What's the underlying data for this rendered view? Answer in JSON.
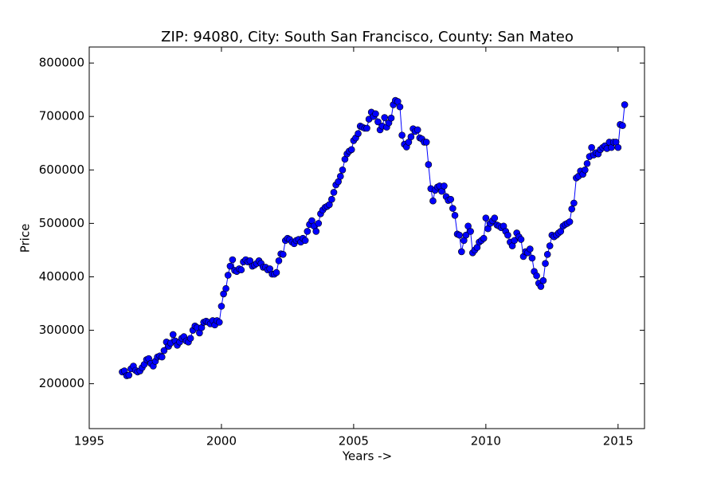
{
  "chart_data": {
    "type": "line",
    "title": "ZIP: 94080, City: South San Francisco, County: San Mateo",
    "x_label": "Years ->",
    "y_label": "Price",
    "color": "#0000ff",
    "marker": "circle",
    "xlim": [
      1995,
      2016
    ],
    "ylim": [
      116000,
      830000
    ],
    "xticks": [
      1995,
      2000,
      2005,
      2010,
      2015
    ],
    "yticks": [
      200000,
      300000,
      400000,
      500000,
      600000,
      700000,
      800000
    ],
    "x": [
      1996.25,
      1996.33,
      1996.42,
      1996.5,
      1996.58,
      1996.67,
      1996.75,
      1996.83,
      1996.92,
      1997.0,
      1997.08,
      1997.17,
      1997.25,
      1997.33,
      1997.42,
      1997.5,
      1997.58,
      1997.67,
      1997.75,
      1997.83,
      1997.92,
      1998.0,
      1998.08,
      1998.17,
      1998.25,
      1998.33,
      1998.42,
      1998.5,
      1998.58,
      1998.67,
      1998.75,
      1998.83,
      1998.92,
      1999.0,
      1999.08,
      1999.17,
      1999.25,
      1999.33,
      1999.42,
      1999.5,
      1999.58,
      1999.67,
      1999.75,
      1999.83,
      1999.92,
      2000.0,
      2000.08,
      2000.17,
      2000.25,
      2000.33,
      2000.42,
      2000.5,
      2000.58,
      2000.67,
      2000.75,
      2000.83,
      2000.92,
      2001.0,
      2001.08,
      2001.17,
      2001.25,
      2001.33,
      2001.42,
      2001.5,
      2001.58,
      2001.67,
      2001.75,
      2001.83,
      2001.92,
      2002.0,
      2002.08,
      2002.17,
      2002.25,
      2002.33,
      2002.42,
      2002.5,
      2002.58,
      2002.67,
      2002.75,
      2002.83,
      2002.92,
      2003.0,
      2003.08,
      2003.17,
      2003.25,
      2003.33,
      2003.42,
      2003.5,
      2003.58,
      2003.67,
      2003.75,
      2003.83,
      2003.92,
      2004.0,
      2004.08,
      2004.17,
      2004.25,
      2004.33,
      2004.42,
      2004.5,
      2004.58,
      2004.67,
      2004.75,
      2004.83,
      2004.92,
      2005.0,
      2005.08,
      2005.17,
      2005.25,
      2005.33,
      2005.42,
      2005.5,
      2005.58,
      2005.67,
      2005.75,
      2005.83,
      2005.92,
      2006.0,
      2006.08,
      2006.17,
      2006.25,
      2006.33,
      2006.42,
      2006.5,
      2006.58,
      2006.67,
      2006.75,
      2006.83,
      2006.92,
      2007.0,
      2007.08,
      2007.17,
      2007.25,
      2007.33,
      2007.42,
      2007.5,
      2007.58,
      2007.67,
      2007.75,
      2007.83,
      2007.92,
      2008.0,
      2008.08,
      2008.17,
      2008.25,
      2008.33,
      2008.42,
      2008.5,
      2008.58,
      2008.67,
      2008.75,
      2008.83,
      2008.92,
      2009.0,
      2009.08,
      2009.17,
      2009.25,
      2009.33,
      2009.42,
      2009.5,
      2009.58,
      2009.67,
      2009.75,
      2009.83,
      2009.92,
      2010.0,
      2010.08,
      2010.17,
      2010.25,
      2010.33,
      2010.42,
      2010.5,
      2010.58,
      2010.67,
      2010.75,
      2010.83,
      2010.92,
      2011.0,
      2011.08,
      2011.17,
      2011.25,
      2011.33,
      2011.42,
      2011.5,
      2011.58,
      2011.67,
      2011.75,
      2011.83,
      2011.92,
      2012.0,
      2012.08,
      2012.17,
      2012.25,
      2012.33,
      2012.42,
      2012.5,
      2012.58,
      2012.67,
      2012.75,
      2012.83,
      2012.92,
      2013.0,
      2013.08,
      2013.17,
      2013.25,
      2013.33,
      2013.42,
      2013.5,
      2013.58,
      2013.67,
      2013.75,
      2013.83,
      2013.92,
      2014.0,
      2014.08,
      2014.17,
      2014.25,
      2014.33,
      2014.42,
      2014.5,
      2014.58,
      2014.67,
      2014.75,
      2014.83,
      2014.92,
      2015.0,
      2015.08,
      2015.17,
      2015.25
    ],
    "values": [
      222000,
      224000,
      215000,
      216000,
      228000,
      233000,
      225000,
      222000,
      224000,
      230000,
      236000,
      245000,
      247000,
      238000,
      233000,
      242000,
      250000,
      252000,
      250000,
      262000,
      278000,
      270000,
      276000,
      292000,
      280000,
      272000,
      278000,
      285000,
      288000,
      280000,
      278000,
      285000,
      300000,
      308000,
      305000,
      295000,
      305000,
      315000,
      317000,
      315000,
      312000,
      318000,
      310000,
      318000,
      315000,
      345000,
      368000,
      378000,
      403000,
      420000,
      432000,
      412000,
      410000,
      415000,
      413000,
      428000,
      432000,
      428000,
      430000,
      420000,
      422000,
      425000,
      430000,
      425000,
      418000,
      418000,
      413000,
      415000,
      405000,
      405000,
      408000,
      430000,
      443000,
      442000,
      468000,
      472000,
      470000,
      465000,
      462000,
      468000,
      470000,
      465000,
      472000,
      468000,
      485000,
      498000,
      505000,
      495000,
      485000,
      500000,
      518000,
      525000,
      530000,
      532000,
      535000,
      545000,
      558000,
      572000,
      578000,
      588000,
      600000,
      620000,
      630000,
      635000,
      638000,
      655000,
      660000,
      668000,
      682000,
      680000,
      678000,
      678000,
      695000,
      708000,
      700000,
      705000,
      690000,
      675000,
      682000,
      698000,
      680000,
      688000,
      697000,
      722000,
      730000,
      728000,
      718000,
      665000,
      648000,
      643000,
      652000,
      662000,
      677000,
      672000,
      675000,
      660000,
      658000,
      652000,
      652000,
      610000,
      565000,
      542000,
      562000,
      568000,
      570000,
      560000,
      570000,
      550000,
      543000,
      545000,
      528000,
      515000,
      480000,
      478000,
      447000,
      468000,
      478000,
      495000,
      485000,
      445000,
      450000,
      455000,
      465000,
      468000,
      472000,
      510000,
      490000,
      500000,
      505000,
      510000,
      497000,
      495000,
      492000,
      495000,
      485000,
      478000,
      465000,
      458000,
      468000,
      482000,
      475000,
      470000,
      438000,
      447000,
      445000,
      452000,
      435000,
      410000,
      402000,
      388000,
      382000,
      393000,
      425000,
      442000,
      458000,
      478000,
      475000,
      478000,
      482000,
      485000,
      495000,
      498000,
      500000,
      503000,
      527000,
      538000,
      585000,
      588000,
      598000,
      592000,
      600000,
      612000,
      625000,
      642000,
      628000,
      632000,
      630000,
      638000,
      642000,
      645000,
      640000,
      652000,
      642000,
      652000,
      652000,
      642000,
      685000,
      683000,
      722000
    ]
  }
}
